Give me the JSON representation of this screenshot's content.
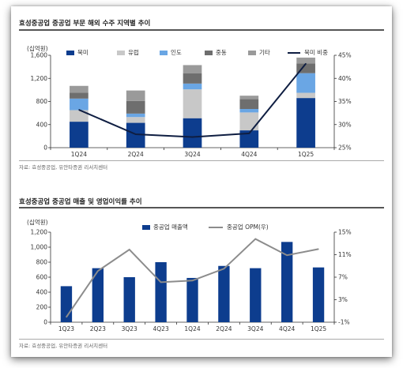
{
  "charts": [
    {
      "title": "효성중공업 중공업 부문 해외 수주 지역별 추이",
      "source": "자료: 효성중공업, 유안타증권 리서치센터",
      "chart_data": {
        "type": "bar",
        "stacked": true,
        "left_unit": "(십억원)",
        "categories": [
          "1Q24",
          "2Q24",
          "3Q24",
          "4Q24",
          "1Q25"
        ],
        "ylim": [
          0,
          1600
        ],
        "yticks": [
          0,
          400,
          800,
          1200,
          1600
        ],
        "yticklabels": [
          "0",
          "400",
          "800",
          "1,200",
          "1,600"
        ],
        "y2lim": [
          25,
          45
        ],
        "y2ticks": [
          25,
          30,
          35,
          40,
          45
        ],
        "y2ticklabels": [
          "25%",
          "30%",
          "35%",
          "40%",
          "45%"
        ],
        "series": [
          {
            "name": "북미",
            "color": "#0d3d8e",
            "values": [
              450,
              430,
              510,
              300,
              860
            ]
          },
          {
            "name": "유럽",
            "color": "#c8c8c8",
            "values": [
              200,
              100,
              500,
              310,
              90
            ]
          },
          {
            "name": "인도",
            "color": "#6aa6e4",
            "values": [
              200,
              60,
              100,
              60,
              340
            ]
          },
          {
            "name": "중동",
            "color": "#6e6e6e",
            "values": [
              100,
              220,
              180,
              170,
              170
            ]
          },
          {
            "name": "기타",
            "color": "#9a9a9a",
            "values": [
              120,
              180,
              140,
              60,
              100
            ]
          }
        ],
        "line": {
          "name": "북미 비중",
          "color": "#0f1e42",
          "values": [
            33.2,
            27.9,
            27.3,
            28.1,
            43.2
          ]
        },
        "legend_position": "top"
      }
    },
    {
      "title": "효성중공업 중공업 매출 및 영업이익률 추이",
      "source": "자료: 효성중공업, 유안타증권 리서치센터",
      "chart_data": {
        "type": "bar",
        "left_unit": "(십억원)",
        "categories": [
          "1Q23",
          "2Q23",
          "3Q23",
          "4Q23",
          "1Q24",
          "2Q24",
          "3Q24",
          "4Q24",
          "1Q25"
        ],
        "ylim": [
          0,
          1200
        ],
        "yticks": [
          0,
          200,
          400,
          600,
          800,
          1000,
          1200
        ],
        "yticklabels": [
          "0",
          "200",
          "400",
          "600",
          "800",
          "1,000",
          "1,200"
        ],
        "y2lim": [
          -1,
          15
        ],
        "y2ticks": [
          -1,
          3,
          7,
          11,
          15
        ],
        "y2ticklabels": [
          "-1%",
          "3%",
          "7%",
          "11%",
          "15%"
        ],
        "series": [
          {
            "name": "중공업 매출액",
            "color": "#0d3d8e",
            "values": [
              480,
              720,
              600,
              800,
              590,
              750,
              720,
              1070,
              730
            ]
          }
        ],
        "line": {
          "name": "중공업 OPM(우)",
          "color": "#8c8c8c",
          "values": [
            -0.1,
            8.1,
            11.9,
            6.1,
            6.4,
            8.5,
            13.8,
            10.9,
            12.0
          ]
        },
        "legend_position": "top"
      }
    }
  ]
}
